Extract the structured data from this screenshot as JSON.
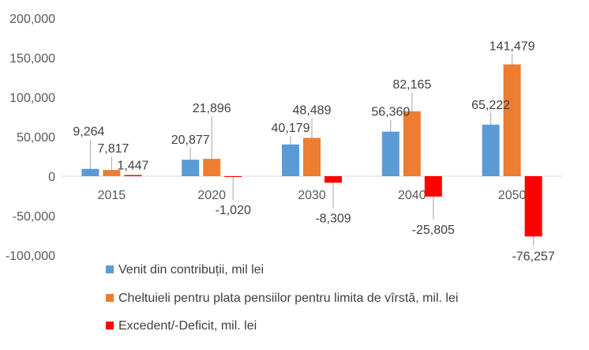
{
  "chart_data": {
    "type": "bar",
    "categories": [
      "2015",
      "2020",
      "2030",
      "2040",
      "2050"
    ],
    "series": [
      {
        "name": "Venit din contribuții, mil lei",
        "color": "#5B9BD5",
        "values": [
          9264,
          20877,
          40179,
          56360,
          65222
        ],
        "labels": [
          "9,264",
          "20,877",
          "40,179",
          "56,360",
          "65,222"
        ]
      },
      {
        "name": "Cheltuieli pentru plata pensiilor pentru limita de vîrstă, mil. lei",
        "color": "#ED7D31",
        "values": [
          7817,
          21896,
          48489,
          82165,
          141479
        ],
        "labels": [
          "7,817",
          "21,896",
          "48,489",
          "82,165",
          "141,479"
        ]
      },
      {
        "name": "Excedent/-Deficit, mil. lei",
        "color": "#FF0000",
        "values": [
          1447,
          -1020,
          -8309,
          -25805,
          -76257
        ],
        "labels": [
          "1,447",
          "-1,020",
          "-8,309",
          "-25,805",
          "-76,257"
        ]
      }
    ],
    "ylim": [
      -100000,
      200000
    ],
    "yticks": [
      200000,
      150000,
      100000,
      50000,
      0,
      -50000,
      -100000
    ],
    "ytick_labels": [
      "200,000",
      "150,000",
      "100,000",
      "50,000",
      "0",
      "-50,000",
      "-100,000"
    ],
    "grid": false,
    "legend_position": "bottom-left",
    "title": "",
    "xlabel": "",
    "ylabel": ""
  }
}
